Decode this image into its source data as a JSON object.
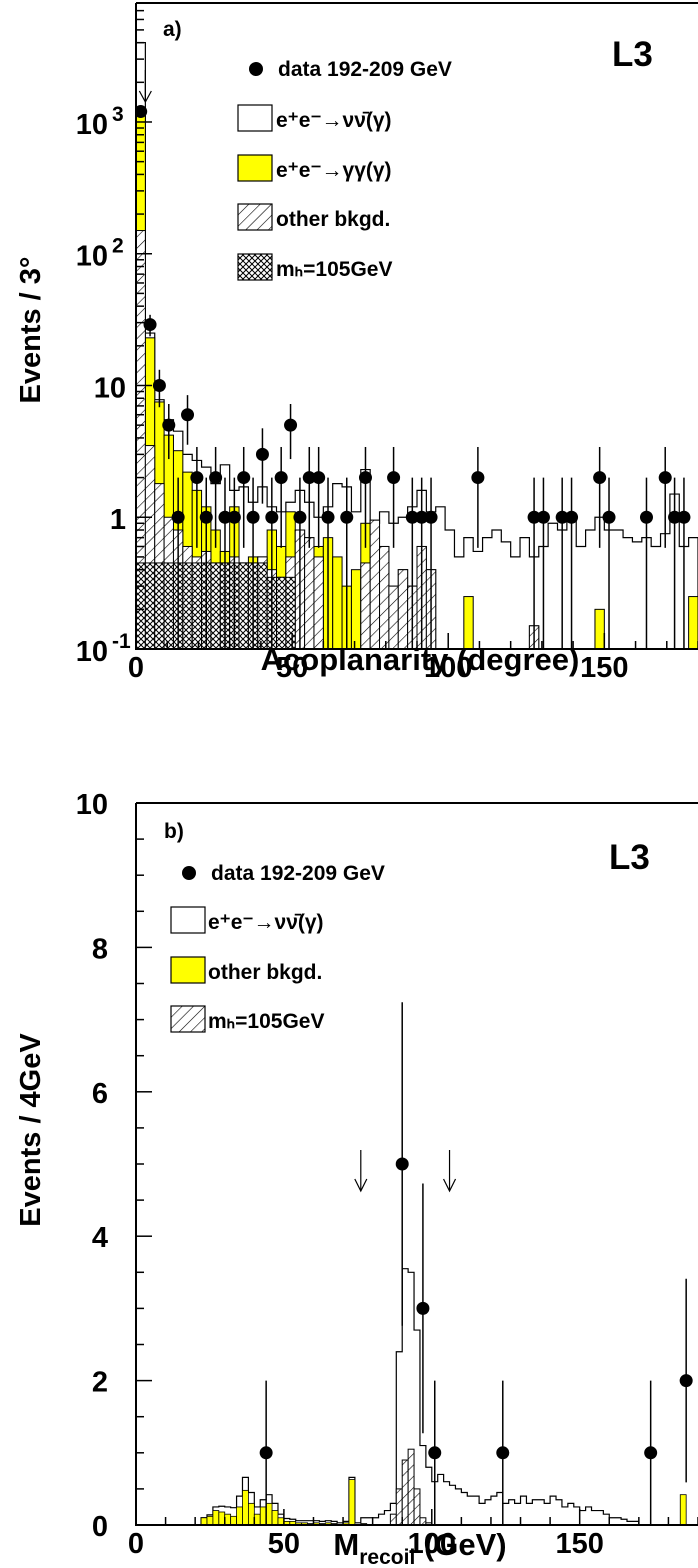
{
  "chart_data": [
    {
      "type": "bar",
      "panel_label": "a)",
      "experiment": "L3",
      "xlabel": "Acoplanarity (degree)",
      "ylabel": "Events / 3°",
      "xlim": [
        0,
        180
      ],
      "ylim": [
        0.1,
        8000
      ],
      "log_y": true,
      "grid": false,
      "legend_position": "top-right",
      "x_ticks": [
        0,
        50,
        100,
        150
      ],
      "y_ticks": [
        {
          "value": 0.1,
          "label": "10",
          "exp": "-1"
        },
        {
          "value": 1,
          "label": "1",
          "exp": ""
        },
        {
          "value": 10,
          "label": "10",
          "exp": ""
        },
        {
          "value": 100,
          "label": "10",
          "exp": "2"
        },
        {
          "value": 1000,
          "label": "10",
          "exp": "3"
        }
      ],
      "legend": [
        {
          "key": "data",
          "text": "data 192-209 GeV"
        },
        {
          "key": "nunu",
          "text": "e⁺e⁻→νν̄(γ)"
        },
        {
          "key": "gg",
          "text": "e⁺e⁻→γγ(γ)"
        },
        {
          "key": "other",
          "text": "other bkgd."
        },
        {
          "key": "signal",
          "text": "mₕ=105GeV"
        }
      ],
      "colors": {
        "gg": "#ffff00",
        "nunu": "#ffffff"
      },
      "bin_width": 3,
      "cut_arrow_x": 3,
      "signal": [
        0.45,
        0.45,
        0.45,
        0.45,
        0.45,
        0.45,
        0.45,
        0.45,
        0.45,
        0.45,
        0.45,
        0.45,
        0.45,
        0.45,
        0.35,
        0.35,
        0.35,
        0,
        0,
        0,
        0,
        0,
        0,
        0,
        0,
        0,
        0,
        0,
        0,
        0,
        0,
        0,
        0,
        0,
        0,
        0,
        0,
        0,
        0,
        0,
        0,
        0,
        0,
        0,
        0,
        0,
        0,
        0,
        0,
        0,
        0,
        0,
        0,
        0,
        0,
        0,
        0,
        0,
        0,
        0,
        0,
        0
      ],
      "other": [
        150,
        3.5,
        1.8,
        1.0,
        0.8,
        0.6,
        0.5,
        0.55,
        0.3,
        0.45,
        0.5,
        0.35,
        0,
        0.5,
        0.4,
        0.3,
        0.5,
        0.8,
        0.7,
        0.5,
        0,
        0,
        0,
        0,
        0.45,
        0.95,
        0.6,
        0.3,
        0.4,
        0.3,
        0.6,
        0.4,
        0,
        0,
        0,
        0,
        0,
        0,
        0,
        0,
        0,
        0,
        0.15,
        0,
        0,
        0,
        0,
        0,
        0,
        0,
        0,
        0,
        0,
        0,
        0,
        0,
        0,
        0,
        0,
        0
      ],
      "gg": [
        1200,
        23,
        7.5,
        4.2,
        3.2,
        2.2,
        1.6,
        1.2,
        0.8,
        0.55,
        1.2,
        0.4,
        0.5,
        0.3,
        0.8,
        0.6,
        1.1,
        0.5,
        0.3,
        0.6,
        0.7,
        0.5,
        0.3,
        0.4,
        0.9,
        0.45,
        0.2,
        0,
        0,
        0,
        0,
        0,
        0,
        0,
        0,
        0.25,
        0,
        0,
        0,
        0,
        0,
        0,
        0,
        0,
        0,
        0,
        0,
        0,
        0,
        0.2,
        0,
        0,
        0,
        0,
        0,
        0,
        0,
        0,
        0,
        0.25
      ],
      "nunu": [
        4000,
        25,
        7.8,
        5.5,
        4.5,
        3.0,
        2.7,
        2.4,
        1.8,
        2.5,
        1.6,
        1.7,
        1.3,
        1.7,
        1.2,
        1.1,
        1.3,
        1.6,
        1.3,
        1.0,
        1.2,
        1.8,
        1.7,
        1.1,
        2.3,
        0.9,
        1.1,
        0.9,
        1.0,
        1.2,
        1.6,
        1.1,
        1.2,
        0.8,
        0.5,
        0.7,
        0.55,
        0.7,
        0.8,
        0.65,
        0.5,
        0.7,
        0.5,
        0.6,
        0.9,
        0.8,
        0.95,
        0.6,
        0.8,
        1.0,
        0.8,
        0.8,
        0.7,
        0.65,
        0.7,
        0.6,
        0.75,
        1.5,
        0.6,
        0.7
      ],
      "data": [
        {
          "x": 1.5,
          "y": 1200
        },
        {
          "x": 4.5,
          "y": 29
        },
        {
          "x": 7.5,
          "y": 10
        },
        {
          "x": 10.5,
          "y": 5
        },
        {
          "x": 13.5,
          "y": 1
        },
        {
          "x": 16.5,
          "y": 6
        },
        {
          "x": 19.5,
          "y": 2
        },
        {
          "x": 22.5,
          "y": 1
        },
        {
          "x": 25.5,
          "y": 2
        },
        {
          "x": 28.5,
          "y": 1
        },
        {
          "x": 31.5,
          "y": 1
        },
        {
          "x": 34.5,
          "y": 2
        },
        {
          "x": 37.5,
          "y": 1
        },
        {
          "x": 40.5,
          "y": 3
        },
        {
          "x": 43.5,
          "y": 1
        },
        {
          "x": 46.5,
          "y": 2
        },
        {
          "x": 49.5,
          "y": 5
        },
        {
          "x": 52.5,
          "y": 1
        },
        {
          "x": 55.5,
          "y": 2
        },
        {
          "x": 58.5,
          "y": 2
        },
        {
          "x": 61.5,
          "y": 1
        },
        {
          "x": 67.5,
          "y": 1
        },
        {
          "x": 73.5,
          "y": 2
        },
        {
          "x": 82.5,
          "y": 2
        },
        {
          "x": 88.5,
          "y": 1
        },
        {
          "x": 91.5,
          "y": 1
        },
        {
          "x": 94.5,
          "y": 1
        },
        {
          "x": 109.5,
          "y": 2
        },
        {
          "x": 127.5,
          "y": 1
        },
        {
          "x": 130.5,
          "y": 1
        },
        {
          "x": 136.5,
          "y": 1
        },
        {
          "x": 139.5,
          "y": 1
        },
        {
          "x": 148.5,
          "y": 2
        },
        {
          "x": 151.5,
          "y": 1
        },
        {
          "x": 163.5,
          "y": 1
        },
        {
          "x": 169.5,
          "y": 2
        },
        {
          "x": 172.5,
          "y": 1
        },
        {
          "x": 175.5,
          "y": 1
        }
      ]
    },
    {
      "type": "bar",
      "panel_label": "b)",
      "experiment": "L3",
      "xlabel": "M",
      "xlabel_sub": "recoil",
      "xlabel_unit": " (GeV)",
      "ylabel": "Events / 4GeV",
      "xlim": [
        0,
        190
      ],
      "ylim": [
        0,
        10
      ],
      "log_y": false,
      "grid": false,
      "legend_position": "top-left",
      "x_ticks": [
        0,
        50,
        100,
        150
      ],
      "y_ticks": [
        0,
        2,
        4,
        6,
        8,
        10
      ],
      "legend": [
        {
          "key": "data",
          "text": "data 192-209 GeV"
        },
        {
          "key": "nunu",
          "text": "e⁺e⁻→νν̄(γ)"
        },
        {
          "key": "other",
          "text": "other bkgd."
        },
        {
          "key": "signal",
          "text": "mₕ=105GeV"
        }
      ],
      "colors": {
        "other": "#ffff00",
        "nunu": "#ffffff"
      },
      "bin_width": 2,
      "x_start": 0,
      "cut_arrows_x": [
        76,
        106
      ],
      "nunu": [
        0,
        0,
        0,
        0,
        0,
        0,
        0,
        0,
        0,
        0,
        0,
        0,
        0.02,
        0.05,
        0.08,
        0.1,
        0.12,
        0.15,
        0.18,
        0.15,
        0.1,
        0.1,
        0.12,
        0.1,
        0.05,
        0.04,
        0.03,
        0.03,
        0.03,
        0.04,
        0.03,
        0.03,
        0.03,
        0.03,
        0.03,
        0.02,
        0.03,
        0.03,
        0.08,
        0.1,
        0.1,
        0.15,
        0.2,
        0.3,
        2.4,
        3.55,
        3.5,
        2.7,
        1.1,
        0.8,
        0.6,
        0.7,
        0.6,
        0.55,
        0.5,
        0.45,
        0.4,
        0.4,
        0.3,
        0.35,
        0.4,
        0.45,
        0.3,
        0.35,
        0.3,
        0.4,
        0.3,
        0.35,
        0.35,
        0.3,
        0.4,
        0.35,
        0.25,
        0.3,
        0.25,
        0.2,
        0.25,
        0.2,
        0.2,
        0.15,
        0.1,
        0.1,
        0.08,
        0.05,
        0.05
      ],
      "other": [
        0,
        0,
        0,
        0,
        0,
        0,
        0,
        0,
        0,
        0,
        0,
        0.1,
        0.12,
        0.2,
        0.18,
        0.15,
        0.12,
        0.25,
        0.48,
        0.3,
        0.15,
        0.25,
        0.3,
        0.2,
        0.1,
        0.05,
        0.05,
        0.03,
        0.03,
        0.02,
        0.03,
        0.02,
        0.03,
        0.02,
        0,
        0.03,
        0.63,
        0,
        0.02,
        0,
        0,
        0,
        0,
        0,
        0,
        0,
        0,
        0,
        0,
        0,
        0,
        0,
        0,
        0,
        0,
        0,
        0,
        0,
        0,
        0,
        0,
        0,
        0,
        0,
        0,
        0,
        0,
        0,
        0,
        0,
        0,
        0,
        0,
        0,
        0,
        0,
        0,
        0,
        0,
        0,
        0,
        0,
        0,
        0,
        0,
        0,
        0,
        0,
        0,
        0,
        0,
        0,
        0.42,
        0,
        0
      ],
      "signal": [
        0,
        0,
        0,
        0,
        0,
        0,
        0,
        0,
        0,
        0,
        0,
        0,
        0,
        0,
        0,
        0,
        0,
        0,
        0,
        0,
        0,
        0,
        0,
        0,
        0,
        0,
        0,
        0,
        0,
        0,
        0,
        0,
        0,
        0,
        0,
        0,
        0,
        0,
        0,
        0,
        0,
        0,
        0,
        0.15,
        0.5,
        0.9,
        1.05,
        0.5,
        0.1,
        0.03,
        0,
        0,
        0,
        0,
        0,
        0,
        0,
        0,
        0,
        0,
        0,
        0,
        0,
        0,
        0,
        0,
        0,
        0,
        0,
        0,
        0,
        0,
        0,
        0,
        0,
        0,
        0,
        0,
        0,
        0,
        0,
        0,
        0,
        0,
        0,
        0,
        0,
        0,
        0,
        0,
        0,
        0,
        0,
        0,
        0
      ],
      "data": [
        {
          "x": 44,
          "y": 1,
          "err": 1.0
        },
        {
          "x": 90,
          "y": 5,
          "err": 2.24
        },
        {
          "x": 97,
          "y": 3,
          "err": 1.73
        },
        {
          "x": 101,
          "y": 1,
          "err": 1.0
        },
        {
          "x": 124,
          "y": 1,
          "err": 1.0
        },
        {
          "x": 174,
          "y": 1,
          "err": 1.0
        },
        {
          "x": 186,
          "y": 2,
          "err": 1.41
        }
      ]
    }
  ]
}
